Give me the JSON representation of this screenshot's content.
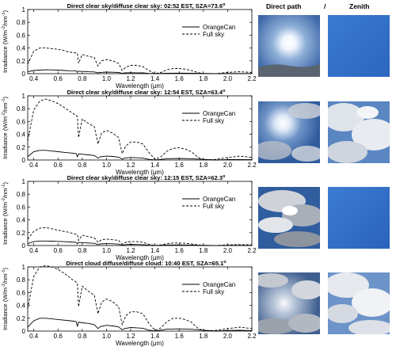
{
  "photo_headers": {
    "direct": "Direct path",
    "separator": "/",
    "zenith": "Zenith"
  },
  "colors": {
    "line": "#000000",
    "axes": "#000000",
    "sky_blue": "#3f7fd0",
    "sky_deep": "#1f52a6"
  },
  "chart_data": [
    {
      "type": "line",
      "title": "Direct clear sky/diffuse clear sky: 02:52 EST, SZA=73.6",
      "title_sup": "o",
      "xlabel": "Wavelength (μm)",
      "ylabel": "Irradiance (W/m",
      "ylabel_sup1": "-2",
      "ylabel_mid": "/nm",
      "ylabel_sup2": "-1",
      "ylabel_end": ")",
      "xlim": [
        0.35,
        2.2
      ],
      "ylim": [
        0,
        1.0
      ],
      "xticks": [
        "0.4",
        "0.6",
        "0.8",
        "1.0",
        "1.2",
        "1.4",
        "1.6",
        "1.8",
        "2.0",
        "2.2"
      ],
      "yticks": [
        "0",
        "0.2",
        "0.4",
        "0.6",
        "0.8",
        "1"
      ],
      "legend": [
        "OrangeCan",
        "Full sky"
      ],
      "legend_position": "top-right",
      "series": [
        {
          "name": "OrangeCan",
          "style": "solid",
          "x": [
            0.35,
            0.4,
            0.45,
            0.5,
            0.55,
            0.6,
            0.65,
            0.7,
            0.75,
            0.76,
            0.77,
            0.8,
            0.85,
            0.9,
            0.93,
            0.95,
            1.0,
            1.05,
            1.1,
            1.13,
            1.15,
            1.2,
            1.25,
            1.3,
            1.35,
            1.4,
            1.5,
            1.6,
            1.7,
            1.8,
            1.9,
            2.0,
            2.1,
            2.2
          ],
          "y": [
            0.03,
            0.05,
            0.055,
            0.06,
            0.058,
            0.055,
            0.05,
            0.045,
            0.042,
            0.02,
            0.04,
            0.035,
            0.03,
            0.027,
            0.012,
            0.02,
            0.025,
            0.022,
            0.018,
            0.005,
            0.012,
            0.015,
            0.014,
            0.012,
            0.004,
            0.0,
            0.008,
            0.009,
            0.006,
            0.004,
            0.0,
            0.003,
            0.003,
            0.002
          ]
        },
        {
          "name": "Full sky",
          "style": "dashed",
          "x": [
            0.35,
            0.4,
            0.45,
            0.5,
            0.55,
            0.6,
            0.65,
            0.68,
            0.72,
            0.76,
            0.77,
            0.8,
            0.85,
            0.9,
            0.93,
            0.96,
            1.0,
            1.05,
            1.1,
            1.13,
            1.16,
            1.2,
            1.25,
            1.3,
            1.35,
            1.4,
            1.45,
            1.5,
            1.55,
            1.6,
            1.65,
            1.7,
            1.75,
            1.8,
            1.9,
            2.0,
            2.1,
            2.2
          ],
          "y": [
            0.15,
            0.35,
            0.4,
            0.4,
            0.39,
            0.38,
            0.36,
            0.34,
            0.33,
            0.32,
            0.16,
            0.3,
            0.27,
            0.25,
            0.12,
            0.2,
            0.22,
            0.2,
            0.16,
            0.05,
            0.1,
            0.13,
            0.13,
            0.11,
            0.05,
            0.0,
            0.02,
            0.06,
            0.08,
            0.08,
            0.07,
            0.05,
            0.02,
            0.0,
            0.0,
            0.02,
            0.03,
            0.02
          ]
        }
      ]
    },
    {
      "type": "line",
      "title": "Direct clear sky/diffuse clear sky: 12:54 EST, SZA=63.4",
      "title_sup": "o",
      "xlabel": "Wavelength (μm)",
      "ylabel": "Irradiance (W/m",
      "ylabel_sup1": "-2",
      "ylabel_mid": "/nm",
      "ylabel_sup2": "-1",
      "ylabel_end": ")",
      "xlim": [
        0.35,
        2.2
      ],
      "ylim": [
        0,
        1.0
      ],
      "xticks": [
        "0.4",
        "0.6",
        "0.8",
        "1.0",
        "1.2",
        "1.4",
        "1.6",
        "1.8",
        "2.0",
        "2.2"
      ],
      "yticks": [
        "0",
        "0.2",
        "0.4",
        "0.6",
        "0.8",
        "1"
      ],
      "legend": [
        "OrangeCan",
        "Full sky"
      ],
      "legend_position": "top-right",
      "series": [
        {
          "name": "OrangeCan",
          "style": "solid",
          "x": [
            0.35,
            0.4,
            0.45,
            0.5,
            0.55,
            0.6,
            0.65,
            0.7,
            0.75,
            0.76,
            0.77,
            0.8,
            0.85,
            0.9,
            0.93,
            0.95,
            1.0,
            1.05,
            1.1,
            1.13,
            1.15,
            1.2,
            1.25,
            1.3,
            1.35,
            1.4,
            1.5,
            1.6,
            1.7,
            1.8,
            1.9,
            2.0,
            2.1,
            2.2
          ],
          "y": [
            0.05,
            0.13,
            0.15,
            0.15,
            0.14,
            0.13,
            0.12,
            0.11,
            0.1,
            0.05,
            0.095,
            0.09,
            0.08,
            0.07,
            0.03,
            0.05,
            0.06,
            0.055,
            0.045,
            0.015,
            0.03,
            0.04,
            0.035,
            0.03,
            0.01,
            0.0,
            0.02,
            0.025,
            0.02,
            0.01,
            0.0,
            0.008,
            0.008,
            0.005
          ]
        },
        {
          "name": "Full sky",
          "style": "dashed",
          "x": [
            0.35,
            0.4,
            0.45,
            0.5,
            0.55,
            0.6,
            0.65,
            0.68,
            0.72,
            0.76,
            0.77,
            0.8,
            0.85,
            0.9,
            0.93,
            0.96,
            1.0,
            1.05,
            1.1,
            1.13,
            1.16,
            1.2,
            1.25,
            1.3,
            1.35,
            1.4,
            1.45,
            1.5,
            1.55,
            1.6,
            1.65,
            1.7,
            1.75,
            1.8,
            1.9,
            2.0,
            2.1,
            2.2
          ],
          "y": [
            0.3,
            0.78,
            0.92,
            0.95,
            0.92,
            0.88,
            0.82,
            0.78,
            0.73,
            0.68,
            0.35,
            0.64,
            0.57,
            0.52,
            0.25,
            0.42,
            0.46,
            0.42,
            0.35,
            0.1,
            0.22,
            0.28,
            0.28,
            0.25,
            0.12,
            0.01,
            0.05,
            0.14,
            0.18,
            0.19,
            0.17,
            0.13,
            0.05,
            0.0,
            0.01,
            0.04,
            0.06,
            0.04
          ]
        }
      ]
    },
    {
      "type": "line",
      "title": "Direct clear sky/diffuse clear sky: 12:15 EST, SZA=62.3",
      "title_sup": "o",
      "xlabel": "Wavelength (μm)",
      "ylabel": "Irradiance (W/m",
      "ylabel_sup1": "-2",
      "ylabel_mid": "/nm",
      "ylabel_sup2": "-1",
      "ylabel_end": ")",
      "xlim": [
        0.35,
        2.2
      ],
      "ylim": [
        0,
        1.0
      ],
      "xticks": [
        "0.4",
        "0.6",
        "0.8",
        "1.0",
        "1.2",
        "1.4",
        "1.6",
        "1.8",
        "2.0",
        "2.2"
      ],
      "yticks": [
        "0",
        "0.2",
        "0.4",
        "0.6",
        "0.8",
        "1"
      ],
      "legend": [
        "OrangeCan",
        "Full sky"
      ],
      "legend_position": "top-right",
      "series": [
        {
          "name": "OrangeCan",
          "style": "solid",
          "x": [
            0.35,
            0.4,
            0.45,
            0.5,
            0.55,
            0.6,
            0.65,
            0.7,
            0.75,
            0.76,
            0.77,
            0.8,
            0.85,
            0.9,
            0.93,
            0.95,
            1.0,
            1.05,
            1.1,
            1.13,
            1.15,
            1.2,
            1.25,
            1.3,
            1.35,
            1.4,
            1.5,
            1.6,
            1.7,
            1.8,
            1.9,
            2.0,
            2.1,
            2.2
          ],
          "y": [
            0.03,
            0.06,
            0.07,
            0.07,
            0.068,
            0.064,
            0.06,
            0.055,
            0.05,
            0.025,
            0.048,
            0.045,
            0.04,
            0.035,
            0.015,
            0.025,
            0.03,
            0.027,
            0.022,
            0.006,
            0.014,
            0.018,
            0.016,
            0.014,
            0.005,
            0.0,
            0.009,
            0.01,
            0.007,
            0.004,
            0.0,
            0.003,
            0.003,
            0.002
          ]
        },
        {
          "name": "Full sky",
          "style": "dashed",
          "x": [
            0.35,
            0.4,
            0.45,
            0.5,
            0.55,
            0.6,
            0.65,
            0.68,
            0.72,
            0.76,
            0.77,
            0.8,
            0.85,
            0.9,
            0.93,
            0.96,
            1.0,
            1.05,
            1.1,
            1.13,
            1.16,
            1.2,
            1.25,
            1.3,
            1.35,
            1.4,
            1.45,
            1.5,
            1.55,
            1.6,
            1.65,
            1.7,
            1.75,
            1.8,
            1.9,
            2.0,
            2.1,
            2.2
          ],
          "y": [
            0.1,
            0.22,
            0.27,
            0.28,
            0.26,
            0.24,
            0.22,
            0.21,
            0.19,
            0.17,
            0.08,
            0.16,
            0.14,
            0.12,
            0.05,
            0.09,
            0.1,
            0.09,
            0.08,
            0.02,
            0.05,
            0.06,
            0.06,
            0.05,
            0.02,
            0.0,
            0.01,
            0.03,
            0.04,
            0.04,
            0.035,
            0.025,
            0.01,
            0.0,
            0.0,
            0.01,
            0.015,
            0.01
          ]
        }
      ]
    },
    {
      "type": "line",
      "title": "Direct cloud diffuse/diffuse cloud: 10:40 EST, SZA=65.1",
      "title_sup": "o",
      "xlabel": "Wavelength (μm)",
      "ylabel": "Irradiance (W/m",
      "ylabel_sup1": "-2",
      "ylabel_mid": "/nm",
      "ylabel_sup2": "-1",
      "ylabel_end": ")",
      "xlim": [
        0.35,
        2.2
      ],
      "ylim": [
        0,
        1.0
      ],
      "xticks": [
        "0.4",
        "0.6",
        "0.8",
        "1.0",
        "1.2",
        "1.4",
        "1.6",
        "1.8",
        "2.0",
        "2.2"
      ],
      "yticks": [
        "0",
        "0.2",
        "0.4",
        "0.6",
        "0.8",
        "1"
      ],
      "legend": [
        "OrangeCan",
        "Full sky"
      ],
      "legend_position": "top-right",
      "series": [
        {
          "name": "OrangeCan",
          "style": "solid",
          "x": [
            0.35,
            0.4,
            0.45,
            0.5,
            0.55,
            0.6,
            0.65,
            0.7,
            0.75,
            0.76,
            0.77,
            0.8,
            0.85,
            0.9,
            0.93,
            0.95,
            1.0,
            1.05,
            1.1,
            1.13,
            1.15,
            1.2,
            1.25,
            1.3,
            1.35,
            1.4,
            1.5,
            1.6,
            1.7,
            1.8,
            1.9,
            2.0,
            2.1,
            2.2
          ],
          "y": [
            0.06,
            0.16,
            0.2,
            0.2,
            0.19,
            0.18,
            0.17,
            0.16,
            0.15,
            0.07,
            0.14,
            0.13,
            0.12,
            0.1,
            0.04,
            0.07,
            0.09,
            0.08,
            0.065,
            0.02,
            0.04,
            0.055,
            0.05,
            0.045,
            0.015,
            0.0,
            0.03,
            0.035,
            0.028,
            0.015,
            0.0,
            0.01,
            0.012,
            0.008
          ]
        },
        {
          "name": "Full sky",
          "style": "dashed",
          "x": [
            0.35,
            0.4,
            0.45,
            0.5,
            0.55,
            0.6,
            0.65,
            0.68,
            0.72,
            0.76,
            0.77,
            0.8,
            0.85,
            0.9,
            0.93,
            0.96,
            1.0,
            1.05,
            1.1,
            1.13,
            1.16,
            1.2,
            1.25,
            1.3,
            1.35,
            1.4,
            1.45,
            1.5,
            1.55,
            1.6,
            1.65,
            1.7,
            1.75,
            1.8,
            1.9,
            2.0,
            2.1,
            2.2
          ],
          "y": [
            0.35,
            0.85,
            1.0,
            1.02,
            1.0,
            0.96,
            0.9,
            0.86,
            0.8,
            0.75,
            0.38,
            0.7,
            0.62,
            0.56,
            0.27,
            0.45,
            0.5,
            0.46,
            0.38,
            0.1,
            0.24,
            0.3,
            0.3,
            0.27,
            0.12,
            0.01,
            0.05,
            0.15,
            0.2,
            0.2,
            0.18,
            0.14,
            0.05,
            0.0,
            0.01,
            0.04,
            0.06,
            0.04
          ]
        }
      ]
    }
  ]
}
